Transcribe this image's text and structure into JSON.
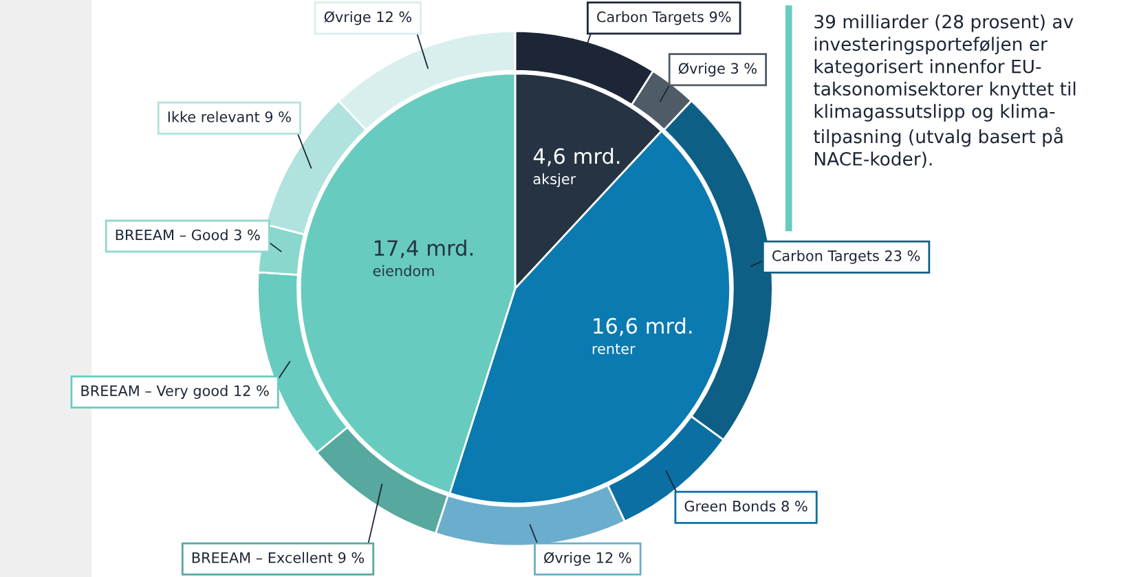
{
  "chart_data": {
    "type": "donut",
    "annotations": [
      "39 milliarder (28 prosent) av\ninvesteringsporteføljen er\nkategorisert innenfor EU-\ntaksonomisektorer knyttet til\nklimagassutslipp og klima-\ntilpasning (utvalg basert på\nNACE-koder)."
    ],
    "categories": [
      "aksjer",
      "renter",
      "eiendom",
      "Carbon Targets",
      "Øvrige",
      "Carbon Targets",
      "Green Bonds",
      "Øvrige",
      "BREEAM – Excellent",
      "BREEAM – Very good",
      "BREEAM – Good",
      "Ikke relevant",
      "Øvrige"
    ],
    "colors": [
      "#263342",
      "#0b7ab0",
      "#67cbbf",
      "#1c2636",
      "#4f5b66",
      "#0e5f86",
      "#0b6fa3",
      "#6badcc",
      "#57a89e",
      "#67cbbf",
      "#8ad8cd",
      "#b0e3dd",
      "#d8efed"
    ],
    "series": [
      {
        "type": "pie",
        "values": [
          4.6,
          16.6,
          17.4,
          null,
          null,
          null,
          null,
          null,
          null,
          null,
          null,
          null,
          null
        ],
        "value_labels": [
          "4,6 mrd.",
          "16,6 mrd.",
          "17,4 mrd.",
          null,
          null,
          null,
          null,
          null,
          null,
          null,
          null,
          null,
          null
        ]
      },
      {
        "type": "donut",
        "values": [
          null,
          null,
          null,
          9,
          3,
          23,
          8,
          12,
          9,
          12,
          3,
          9,
          12
        ],
        "value_labels": [
          null,
          null,
          null,
          "9%",
          "3 %",
          "23 %",
          "8 %",
          "12 %",
          "9 %",
          "12 %",
          "3 %",
          "9 %",
          "12 %"
        ]
      }
    ]
  }
}
